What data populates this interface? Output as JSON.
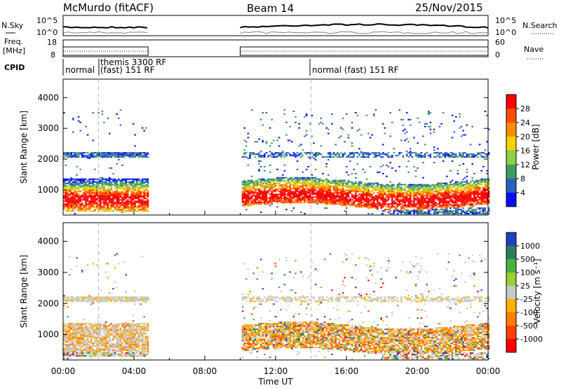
{
  "header": {
    "site": "McMurdo (fitACF)",
    "beam": "Beam 14",
    "date": "25/Nov/2015"
  },
  "status_panels": {
    "nsky_label": "N.Sky",
    "nsky_ticks": [
      "10^5",
      "10^0"
    ],
    "nsearch_label": "N.Search",
    "nsearch_ticks": [
      "10^5",
      "10^0"
    ],
    "freq_label_1": "Freq.",
    "freq_label_2": "[MHz]",
    "freq_ticks": [
      "18",
      "8"
    ],
    "nave_label": "Nave",
    "nave_ticks": [
      "60",
      "0"
    ],
    "cpid_label": "CPID"
  },
  "cpid_segments": [
    {
      "t": 0.0,
      "label": "normal"
    },
    {
      "t": 2.0,
      "label": "themis 3300 RF"
    },
    {
      "t": 2.0,
      "label": "(fast) 151 RF"
    },
    {
      "t": 14.0,
      "label": "normal (fast) 151 RF"
    }
  ],
  "chart_data": [
    {
      "type": "heatmap",
      "quantity": "power",
      "ylabel": "Slant Range [km]",
      "xlabel": "Time UT",
      "xlim_hours": [
        0,
        24
      ],
      "ylim_km": [
        180,
        4600
      ],
      "y_ticks": [
        "1000",
        "2000",
        "3000",
        "4000"
      ],
      "x_ticks": [
        "00:00",
        "04:00",
        "08:00",
        "12:00",
        "16:00",
        "20:00",
        "00:00"
      ],
      "colorbar_label": "Power [dB]",
      "colorbar_ticks": [
        "28",
        "24",
        "20",
        "16",
        "12",
        "8",
        "4"
      ],
      "colorbar_colors": [
        "#ff0000",
        "#ff4c00",
        "#ff8c00",
        "#ffd000",
        "#8ccf48",
        "#3c9c5c",
        "#2c60c0",
        "#0010ff"
      ],
      "data_gap_hours": [
        4.8,
        10.0
      ]
    },
    {
      "type": "heatmap",
      "quantity": "velocity",
      "ylabel": "Slant Range [km]",
      "xlabel": "Time UT",
      "xlim_hours": [
        0,
        24
      ],
      "ylim_km": [
        180,
        4600
      ],
      "y_ticks": [
        "1000",
        "2000",
        "3000",
        "4000"
      ],
      "x_ticks": [
        "00:00",
        "04:00",
        "08:00",
        "12:00",
        "16:00",
        "20:00",
        "00:00"
      ],
      "colorbar_label": "Velocity [m s⁻¹]",
      "colorbar_ticks": [
        "1000",
        "500",
        "100",
        "25",
        "-25",
        "-100",
        "-500",
        "-1000"
      ],
      "colorbar_colors": [
        "#2040c0",
        "#2c7c60",
        "#48b040",
        "#9ad030",
        "#c8c8c8",
        "#ffb000",
        "#ff8000",
        "#ff4000",
        "#ff0000"
      ],
      "data_gap_hours": [
        4.8,
        10.0
      ]
    }
  ],
  "colors": {
    "power": [
      "#0010ff",
      "#2c60c0",
      "#3c9c5c",
      "#8ccf48",
      "#ffd000",
      "#ff8c00",
      "#ff4c00",
      "#ff0000"
    ],
    "velocity_pos": [
      "#2040c0",
      "#2c7c60",
      "#48b040"
    ],
    "velocity_grey": "#c8c8c8",
    "velocity_neg": [
      "#ffb000",
      "#ff8000",
      "#ff4000",
      "#ff0000"
    ]
  }
}
